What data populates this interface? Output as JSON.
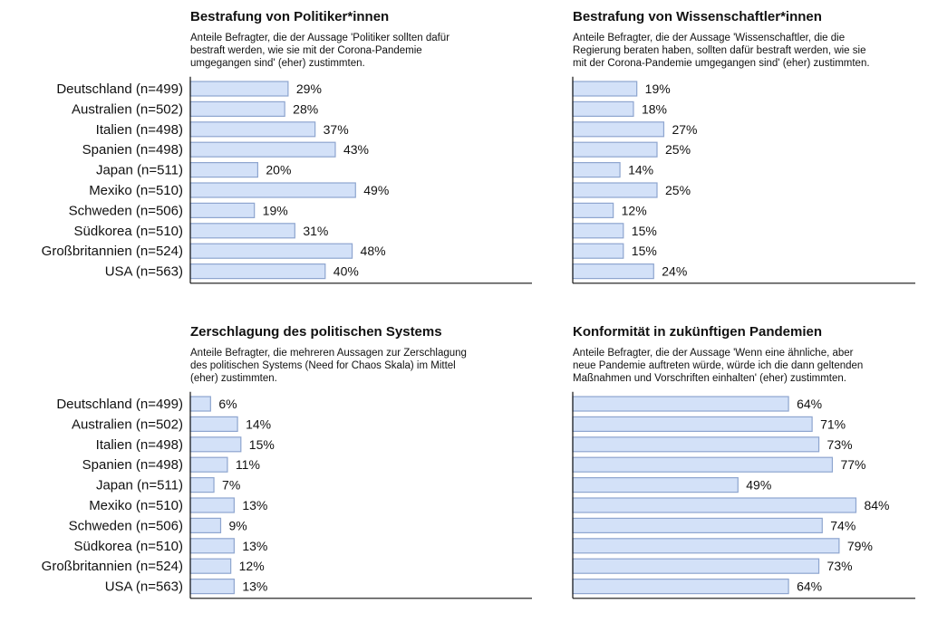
{
  "figure": {
    "bar_fill": "#d3e1f8",
    "bar_stroke": "#8ea5cf",
    "text_color": "#111111"
  },
  "chart_data": [
    {
      "type": "bar",
      "orientation": "horizontal",
      "title": "Bestrafung von Politiker*innen",
      "subtitle": [
        "Anteile Befragter, die der Aussage 'Politiker sollten dafür",
        "bestraft werden, wie sie mit der Corona-Pandemie",
        "umgegangen sind' (eher) zustimmten."
      ],
      "categories": [
        "Deutschland (n=499)",
        "Australien (n=502)",
        "Italien (n=498)",
        "Spanien (n=498)",
        "Japan (n=511)",
        "Mexiko (n=510)",
        "Schweden (n=506)",
        "Südkorea (n=510)",
        "Großbritannien (n=524)",
        "USA (n=563)"
      ],
      "values": [
        29,
        28,
        37,
        43,
        20,
        49,
        19,
        31,
        48,
        40
      ],
      "value_labels": [
        "29%",
        "28%",
        "37%",
        "43%",
        "20%",
        "49%",
        "19%",
        "31%",
        "48%",
        "40%"
      ],
      "unit": "%",
      "xlim": [
        0,
        100
      ],
      "grid": false
    },
    {
      "type": "bar",
      "orientation": "horizontal",
      "title": "Bestrafung von Wissenschaftler*innen",
      "subtitle": [
        "Anteile Befragter, die der Aussage 'Wissenschaftler, die die",
        "Regierung beraten haben, sollten dafür bestraft werden, wie sie",
        "mit der Corona-Pandemie umgegangen sind' (eher) zustimmten."
      ],
      "categories": [
        "Deutschland (n=499)",
        "Australien (n=502)",
        "Italien (n=498)",
        "Spanien (n=498)",
        "Japan (n=511)",
        "Mexiko (n=510)",
        "Schweden (n=506)",
        "Südkorea (n=510)",
        "Großbritannien (n=524)",
        "USA (n=563)"
      ],
      "values": [
        19,
        18,
        27,
        25,
        14,
        25,
        12,
        15,
        15,
        24
      ],
      "value_labels": [
        "19%",
        "18%",
        "27%",
        "25%",
        "14%",
        "25%",
        "12%",
        "15%",
        "15%",
        "24%"
      ],
      "unit": "%",
      "xlim": [
        0,
        100
      ],
      "grid": false
    },
    {
      "type": "bar",
      "orientation": "horizontal",
      "title": "Zerschlagung des politischen Systems",
      "subtitle": [
        "Anteile Befragter, die mehreren Aussagen zur Zerschlagung",
        "des politischen Systems (Need for Chaos Skala) im Mittel",
        "(eher) zustimmten."
      ],
      "categories": [
        "Deutschland (n=499)",
        "Australien (n=502)",
        "Italien (n=498)",
        "Spanien (n=498)",
        "Japan (n=511)",
        "Mexiko (n=510)",
        "Schweden (n=506)",
        "Südkorea (n=510)",
        "Großbritannien (n=524)",
        "USA (n=563)"
      ],
      "values": [
        6,
        14,
        15,
        11,
        7,
        13,
        9,
        13,
        12,
        13
      ],
      "value_labels": [
        "6%",
        "14%",
        "15%",
        "11%",
        "7%",
        "13%",
        "9%",
        "13%",
        "12%",
        "13%"
      ],
      "unit": "%",
      "xlim": [
        0,
        100
      ],
      "grid": false
    },
    {
      "type": "bar",
      "orientation": "horizontal",
      "title": "Konformität in zukünftigen Pandemien",
      "subtitle": [
        "Anteile Befragter, die der Aussage 'Wenn eine ähnliche, aber",
        "neue Pandemie auftreten würde, würde ich die dann geltenden",
        "Maßnahmen und Vorschriften einhalten' (eher) zustimmten."
      ],
      "categories": [
        "Deutschland (n=499)",
        "Australien (n=502)",
        "Italien (n=498)",
        "Spanien (n=498)",
        "Japan (n=511)",
        "Mexiko (n=510)",
        "Schweden (n=506)",
        "Südkorea (n=510)",
        "Großbritannien (n=524)",
        "USA (n=563)"
      ],
      "values": [
        64,
        71,
        73,
        77,
        49,
        84,
        74,
        79,
        73,
        64
      ],
      "value_labels": [
        "64%",
        "71%",
        "73%",
        "77%",
        "49%",
        "84%",
        "74%",
        "79%",
        "73%",
        "64%"
      ],
      "unit": "%",
      "xlim": [
        0,
        100
      ],
      "grid": false
    }
  ]
}
